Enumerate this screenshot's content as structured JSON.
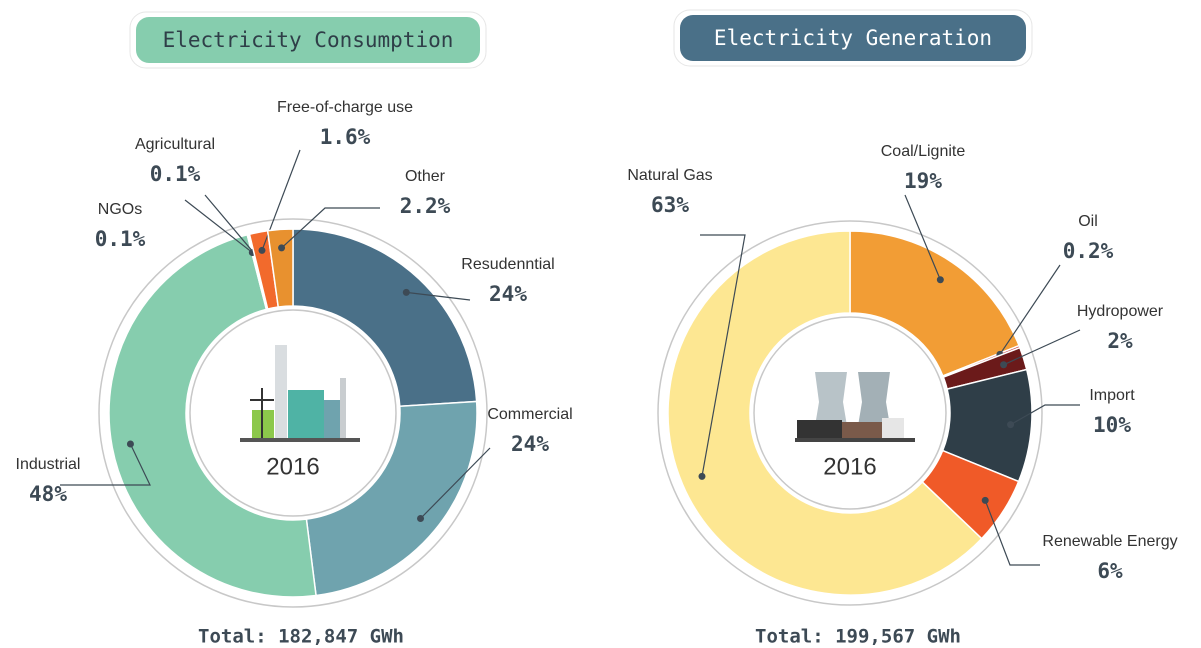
{
  "chart_data": [
    {
      "type": "pie",
      "title": "Electricity Consumption",
      "center_label": "2016",
      "total": "Total: 182,847 GWh",
      "categories": [
        "Resudenntial",
        "Commercial",
        "Industrial",
        "NGOs",
        "Agricultural",
        "Free-of-charge use",
        "Other"
      ],
      "values": [
        24,
        24,
        48,
        0.1,
        0.1,
        1.6,
        2.2
      ],
      "value_labels": [
        "24%",
        "24%",
        "48%",
        "0.1%",
        "0.1%",
        "1.6%",
        "2.2%"
      ],
      "colors": [
        "#4a7088",
        "#6fa3ae",
        "#86cdae",
        "#c0213a",
        "#d9363e",
        "#f26a2c",
        "#e8912f"
      ]
    },
    {
      "type": "pie",
      "title": "Electricity Generation",
      "center_label": "2016",
      "total": "Total: 199,567 GWh",
      "categories": [
        "Coal/Lignite",
        "Oil",
        "Hydropower",
        "Import",
        "Renewable Energy",
        "Natural Gas"
      ],
      "values": [
        19,
        0.2,
        2,
        10,
        6,
        63
      ],
      "value_labels": [
        "19%",
        "0.2%",
        "2%",
        "10%",
        "6%",
        "63%"
      ],
      "colors": [
        "#f29d35",
        "#c33a3a",
        "#6b1a1a",
        "#2f3e48",
        "#f05a28",
        "#fde792"
      ]
    }
  ]
}
